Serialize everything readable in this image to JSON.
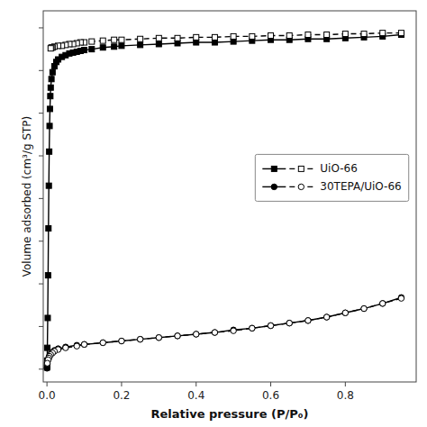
{
  "chart_data": {
    "type": "line",
    "x_label": "Relative pressure (P/P₀)",
    "y_label": "Volume adsorbed (cm³/g STP)",
    "xlim": [
      -0.01,
      0.99
    ],
    "ylim": [
      -15,
      420
    ],
    "xticks": [
      {
        "value": 0.0,
        "label": "0.0"
      },
      0.2,
      0.4,
      0.6,
      0.8
    ],
    "yticks": [
      0,
      50,
      100,
      150,
      200,
      250,
      300,
      350,
      400
    ],
    "tick_labels": "x",
    "grid": false,
    "legend": "right",
    "series": [
      {
        "color": "#000000",
        "marker": "square",
        "line_style": "solid",
        "x": [
          0.0001,
          0.0003,
          0.0005,
          0.001,
          0.002,
          0.003,
          0.004,
          0.005,
          0.006,
          0.007,
          0.008,
          0.009,
          0.01,
          0.012,
          0.015,
          0.02,
          0.025,
          0.03,
          0.04,
          0.05,
          0.06,
          0.07,
          0.08,
          0.09,
          0.1,
          0.12,
          0.15,
          0.18,
          0.2,
          0.25,
          0.3,
          0.35,
          0.4,
          0.45,
          0.5,
          0.55,
          0.6,
          0.65,
          0.7,
          0.75,
          0.8,
          0.85,
          0.9,
          0.95
        ],
        "values": [
          2,
          5,
          10,
          25,
          60,
          110,
          165,
          215,
          255,
          285,
          305,
          320,
          330,
          340,
          348,
          355,
          360,
          363,
          366,
          368,
          370,
          371,
          372,
          373,
          374,
          375,
          377,
          378,
          379,
          380,
          381,
          382,
          383,
          383,
          384,
          385,
          386,
          386,
          387,
          387,
          388,
          389,
          390,
          392
        ]
      },
      {
        "name": "UiO-66",
        "color": "#000000",
        "marker": "square-open",
        "line_style": "dashed",
        "x": [
          0.95,
          0.9,
          0.85,
          0.8,
          0.75,
          0.7,
          0.65,
          0.6,
          0.55,
          0.5,
          0.45,
          0.4,
          0.35,
          0.3,
          0.25,
          0.2,
          0.18,
          0.15,
          0.12,
          0.1,
          0.09,
          0.08,
          0.07,
          0.06,
          0.05,
          0.04,
          0.03,
          0.02,
          0.015,
          0.012,
          0.01
        ],
        "values": [
          394,
          394,
          393,
          393,
          392,
          392,
          391,
          391,
          390,
          390,
          389,
          389,
          388,
          388,
          387,
          386,
          386,
          385,
          384,
          383,
          383,
          382,
          381,
          381,
          380,
          379,
          379,
          378,
          377,
          377,
          376
        ]
      },
      {
        "color": "#000000",
        "marker": "circle",
        "line_style": "solid",
        "x": [
          0.0001,
          0.001,
          0.003,
          0.005,
          0.007,
          0.01,
          0.015,
          0.02,
          0.03,
          0.05,
          0.08,
          0.1,
          0.15,
          0.2,
          0.25,
          0.3,
          0.35,
          0.4,
          0.45,
          0.5,
          0.55,
          0.6,
          0.65,
          0.7,
          0.75,
          0.8,
          0.85,
          0.9,
          0.95
        ],
        "values": [
          1,
          6,
          11,
          14,
          16,
          18,
          20,
          22,
          24,
          26,
          28,
          29,
          31,
          33,
          35,
          37,
          39,
          41,
          43,
          46,
          48,
          51,
          54,
          57,
          61,
          66,
          71,
          77,
          84
        ]
      },
      {
        "name": "30TEPA/UiO-66",
        "color": "#000000",
        "marker": "circle-open",
        "line_style": "dashed",
        "x": [
          0.95,
          0.9,
          0.85,
          0.8,
          0.75,
          0.7,
          0.65,
          0.6,
          0.55,
          0.5,
          0.45,
          0.4,
          0.35,
          0.3,
          0.25,
          0.2,
          0.15,
          0.1,
          0.08,
          0.05,
          0.03,
          0.02,
          0.015,
          0.01,
          0.007,
          0.005,
          0.003,
          0.001
        ],
        "values": [
          83,
          77,
          71,
          66,
          61,
          57,
          54,
          51,
          48,
          45,
          43,
          41,
          39,
          37,
          35,
          33,
          31,
          29,
          27,
          25,
          23,
          21,
          19,
          17,
          15,
          13,
          11,
          7
        ]
      }
    ]
  }
}
